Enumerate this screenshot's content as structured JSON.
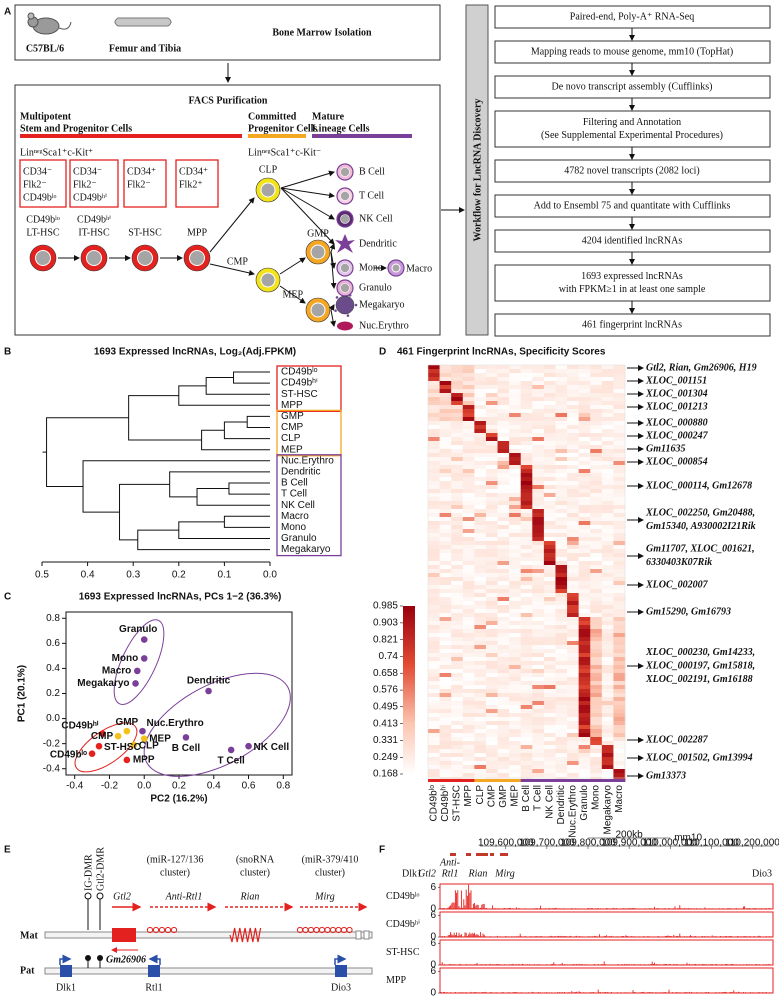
{
  "panel_a": {
    "label": "A",
    "mouse": "C57BL/6",
    "bone": "Femur and Tibia",
    "isolation": "Bone Marrow Isolation",
    "facs_title": "FACS Purification",
    "groups": [
      {
        "lines": [
          "Multipotent",
          "Stem and Progenitor Cells"
        ],
        "color": "#e3221f"
      },
      {
        "lines": [
          "Committed",
          "Progenitor Cells"
        ],
        "color": "#f5a623"
      },
      {
        "lines": [
          "Mature",
          "Lineage Cells"
        ],
        "color": "#7b3f99"
      }
    ],
    "markers": [
      "LinⁿᵉᵍSca1⁺c-Kit⁺",
      "LinⁿᵉᵍSca1⁺c-Kit⁻"
    ],
    "sort_boxes": [
      [
        "CD34⁻",
        "Flk2⁻",
        "CD49bˡᵒ"
      ],
      [
        "CD34⁻",
        "Flk2⁻",
        "CD49bʰⁱ"
      ],
      [
        "CD34⁺",
        "Flk2⁻"
      ],
      [
        "CD34⁺",
        "Flk2⁺"
      ]
    ],
    "stem_cells": [
      [
        "CD49bˡᵒ",
        "LT-HSC"
      ],
      [
        "CD49bʰⁱ",
        "IT-HSC"
      ],
      [
        "ST-HSC"
      ],
      [
        "MPP"
      ]
    ],
    "progenitors": [
      "CLP",
      "CMP",
      "GMP",
      "MEP"
    ],
    "lineage": [
      "B Cell",
      "T Cell",
      "NK Cell",
      "Dendritic",
      "Mono",
      "Granulo",
      "Megakaryo",
      "Nuc.Erythro"
    ],
    "macro": "Macro",
    "workflow_title": "Workflow for LncRNA Discovery",
    "workflow": [
      [
        "Paired-end, Poly-A⁺ RNA-Seq"
      ],
      [
        "Mapping reads to mouse genome, mm10 (TopHat)"
      ],
      [
        "De novo transcript assembly (Cufflinks)"
      ],
      [
        "Filtering and Annotation",
        "(See Supplemental Experimental Procedures)"
      ],
      [
        "4782 novel transcripts (2082 loci)"
      ],
      [
        "Add to Ensembl 75 and quantitate with Cufflinks"
      ],
      [
        "4204 identified lncRNAs"
      ],
      [
        "1693 expressed lncRNAs",
        "with FPKM≥1 in at least one sample"
      ],
      [
        "461 fingerprint lncRNAs"
      ]
    ]
  },
  "panel_b": {
    "label": "B",
    "title": "1693 Expressed lncRNAs, Log₂(Adj.FPKM)",
    "leaves": [
      "CD49bˡᵒ",
      "CD49bʰⁱ",
      "ST-HSC",
      "MPP",
      "GMP",
      "CMP",
      "CLP",
      "MEP",
      "Nuc.Erythro",
      "Dendritic",
      "B Cell",
      "T Cell",
      "NK Cell",
      "Macro",
      "Mono",
      "Granulo",
      "Megakaryo"
    ],
    "box_colors": [
      "#e3221f",
      "#f5a623",
      "#7b3f99"
    ],
    "xlim": [
      0.5,
      0
    ],
    "xticks": [
      0.5,
      0.4,
      0.3,
      0.2,
      0.1,
      {
        "value": 0,
        "label": "0.0"
      }
    ]
  },
  "panel_c": {
    "label": "C",
    "type": "scatter",
    "title": "1693 Expressed lncRNAs, PCs 1−2 (36.3%)",
    "xlabel": "PC2 (16.2%)",
    "ylabel": "PC1 (20.1%)",
    "xlim": [
      -0.45,
      0.85
    ],
    "ylim": [
      -0.45,
      0.85
    ],
    "xticks": [
      -0.4,
      -0.2,
      {
        "value": 0,
        "label": "0.0"
      },
      0.2,
      0.4,
      0.6,
      0.8
    ],
    "yticks": [
      -0.4,
      -0.2,
      {
        "value": 0,
        "label": "0.0"
      },
      0.2,
      0.4,
      0.6,
      0.8
    ],
    "points": [
      {
        "label": "Granulo",
        "x": 0.0,
        "y": 0.63,
        "color": "#7b3f99"
      },
      {
        "label": "Mono",
        "x": 0.0,
        "y": 0.48,
        "color": "#7b3f99"
      },
      {
        "label": "Macro",
        "x": -0.04,
        "y": 0.38,
        "color": "#7b3f99"
      },
      {
        "label": "Megakaryo",
        "x": -0.05,
        "y": 0.28,
        "color": "#7b3f99"
      },
      {
        "label": "Dendritic",
        "x": 0.37,
        "y": 0.22,
        "color": "#7b3f99"
      },
      {
        "label": "CD49bʰⁱ",
        "x": -0.24,
        "y": -0.12,
        "color": "#e3221f"
      },
      {
        "label": "GMP",
        "x": -0.1,
        "y": -0.1,
        "color": "#f2c21b"
      },
      {
        "label": "CMP",
        "x": -0.15,
        "y": -0.14,
        "color": "#f2c21b"
      },
      {
        "label": "Nuc.Erythro",
        "x": -0.01,
        "y": -0.1,
        "color": "#7b3f99"
      },
      {
        "label": "MEP",
        "x": 0.0,
        "y": -0.16,
        "color": "#f2c21b"
      },
      {
        "label": "CLP",
        "x": -0.06,
        "y": -0.21,
        "color": "#f2c21b"
      },
      {
        "label": "ST-HSC",
        "x": -0.26,
        "y": -0.22,
        "color": "#e3221f"
      },
      {
        "label": "CD49bˡᵒ",
        "x": -0.3,
        "y": -0.28,
        "color": "#e3221f"
      },
      {
        "label": "MPP",
        "x": -0.1,
        "y": -0.33,
        "color": "#e3221f"
      },
      {
        "label": "B Cell",
        "x": 0.24,
        "y": -0.15,
        "color": "#7b3f99"
      },
      {
        "label": "NK Cell",
        "x": 0.6,
        "y": -0.22,
        "color": "#7b3f99"
      },
      {
        "label": "T Cell",
        "x": 0.5,
        "y": -0.25,
        "color": "#7b3f99"
      }
    ]
  },
  "panel_d": {
    "label": "D",
    "title": "461 Fingerprint lncRNAs, Specificity Scores",
    "columns": [
      "CD49bˡᵒ",
      "CD49bʰⁱ",
      "ST-HSC",
      "MPP",
      "CLP",
      "CMP",
      "GMP",
      "MEP",
      "B Cell",
      "T Cell",
      "NK Cell",
      "Dendritic",
      "Nuc.Erythro",
      "Granulo",
      "Mono",
      "Megakaryo",
      "Macro"
    ],
    "colorbar_lim": [
      0.168,
      0.985
    ],
    "colorbar_ticks": [
      0.985,
      0.903,
      0.821,
      0.74,
      0.658,
      0.576,
      0.495,
      0.413,
      0.331,
      0.249,
      0.168
    ],
    "annotations": [
      {
        "lines": [
          "Gtl2, Rian, Gm26906, H19"
        ],
        "color": "#e3221f"
      },
      {
        "lines": [
          "XLOC_001151"
        ],
        "color": "#e3221f"
      },
      {
        "lines": [
          "XLOC_001304"
        ],
        "color": "#e3221f"
      },
      {
        "lines": [
          "XLOC_001213"
        ],
        "color": "#e3221f"
      },
      {
        "lines": [
          "XLOC_000880"
        ],
        "color": "#f5a623"
      },
      {
        "lines": [
          "XLOC_000247"
        ],
        "color": "#f5a623"
      },
      {
        "lines": [
          "Gm11635"
        ],
        "color": "#f5a623"
      },
      {
        "lines": [
          "XLOC_000854"
        ],
        "color": "#f5a623"
      },
      {
        "lines": [
          "XLOC_000114, Gm12678"
        ],
        "color": "#7b3f99"
      },
      {
        "lines": [
          "XLOC_002250, Gm20488,",
          "Gm15340, A930002I21Rik"
        ],
        "color": "#7b3f99"
      },
      {
        "lines": [
          "Gm11707, XLOC_001621,",
          "6330403K07Rik"
        ],
        "color": "#7b3f99"
      },
      {
        "lines": [
          "XLOC_002007"
        ],
        "color": "#7b3f99"
      },
      {
        "lines": [
          "Gm15290, Gm16793"
        ],
        "color": "#7b3f99"
      },
      {
        "lines": [
          "XLOC_000230, Gm14233,",
          "XLOC_000197, Gm15818,",
          "XLOC_002191, Gm16188"
        ],
        "color": "#7b3f99"
      },
      {
        "lines": [
          "XLOC_002287"
        ],
        "color": "#7b3f99"
      },
      {
        "lines": [
          "XLOC_001502, Gm13994"
        ],
        "color": "#7b3f99"
      },
      {
        "lines": [
          "Gm13373"
        ],
        "color": "#7b3f99"
      }
    ]
  },
  "panel_e": {
    "label": "E",
    "dmr": [
      "IG-DMR",
      "Gtl2-DMR"
    ],
    "clusters": [
      [
        "(miR-127/136",
        "cluster)"
      ],
      [
        "(snoRNA",
        "cluster)"
      ],
      [
        "(miR-379/410",
        "cluster)"
      ]
    ],
    "mat_genes": [
      "Gtl2",
      "Anti-Rtl1",
      "Rian",
      "Mirg"
    ],
    "mat": "Mat",
    "pat": "Pat",
    "gm": "Gm26906",
    "pat_genes": [
      "Dlk1",
      "Rtl1",
      "Dio3"
    ]
  },
  "panel_f": {
    "label": "F",
    "scale": "200kb",
    "assembly": "mm10",
    "xlim": [
      109440000,
      110250000
    ],
    "xticks": [
      {
        "value": 109600000,
        "label": "109,600,000"
      },
      {
        "value": 109700000,
        "label": "109,700,000"
      },
      {
        "value": 109800000,
        "label": "109,800,000"
      },
      {
        "value": 109900000,
        "label": "109,900,000"
      },
      {
        "value": 110000000,
        "label": "110,000,000"
      },
      {
        "value": 110100000,
        "label": "110,100,000"
      },
      {
        "value": 110200000,
        "label": "110,200,000"
      }
    ],
    "genes": [
      [
        "Dlk1"
      ],
      [
        "Gtl2"
      ],
      [
        "Anti-",
        "Rtl1"
      ],
      [
        "Rian"
      ],
      [
        "Mirg"
      ],
      [
        "Dio3"
      ]
    ],
    "tracks": [
      "CD49bˡᵒ",
      "CD49bʰⁱ",
      "ST-HSC",
      "MPP"
    ],
    "track_ylim": [
      0,
      7
    ],
    "track_yticks": [
      0,
      6
    ]
  }
}
